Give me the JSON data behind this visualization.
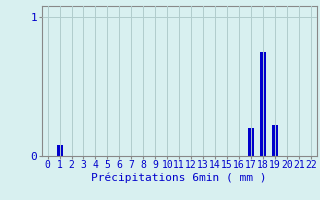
{
  "categories": [
    0,
    1,
    2,
    3,
    4,
    5,
    6,
    7,
    8,
    9,
    10,
    11,
    12,
    13,
    14,
    15,
    16,
    17,
    18,
    19,
    20,
    21,
    22
  ],
  "values": [
    0,
    0.08,
    0,
    0,
    0,
    0,
    0,
    0,
    0,
    0,
    0,
    0,
    0,
    0,
    0,
    0,
    0,
    0.2,
    0.75,
    0.22,
    0,
    0,
    0
  ],
  "bar_color": "#0000cc",
  "background_color": "#d8f0f0",
  "grid_color": "#b0cccc",
  "axis_color": "#888888",
  "text_color": "#0000cc",
  "xlabel": "Précipitations 6min ( mm )",
  "ytick_labels": [
    "0",
    "1"
  ],
  "ytick_vals": [
    0,
    1
  ],
  "ylim": [
    0,
    1.08
  ],
  "xlim": [
    -0.5,
    22.5
  ],
  "bar_width": 0.5,
  "xlabel_fontsize": 8,
  "tick_fontsize": 7
}
